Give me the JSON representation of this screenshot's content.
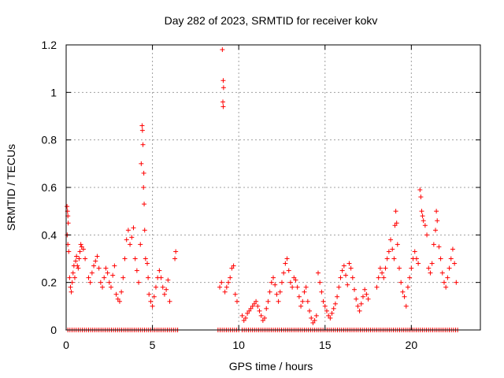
{
  "chart_data": {
    "type": "scatter",
    "title": "Day 282 of 2023, SRMTID for receiver kokv",
    "xlabel": "GPS time / hours",
    "ylabel": "SRMTID / TECUs",
    "xlim": [
      0,
      24
    ],
    "ylim": [
      0,
      1.2
    ],
    "x_ticks": [
      "0",
      "5",
      "10",
      "15",
      "20"
    ],
    "x_tick_values": [
      0,
      5,
      10,
      15,
      20
    ],
    "y_ticks": [
      "0",
      "0.2",
      "0.4",
      "0.6",
      "0.8",
      "1",
      "1.2"
    ],
    "y_tick_values": [
      0,
      0.2,
      0.4,
      0.6,
      0.8,
      1.0,
      1.2
    ],
    "grid": true,
    "marker": "plus",
    "color": "#ff0000",
    "series": [
      {
        "name": "SRMTID",
        "points": [
          [
            0.05,
            0.52
          ],
          [
            0.08,
            0.5
          ],
          [
            0.1,
            0.48
          ],
          [
            0.12,
            0.45
          ],
          [
            0.06,
            0.4
          ],
          [
            0.1,
            0.36
          ],
          [
            0.15,
            0.33
          ],
          [
            0.2,
            0.22
          ],
          [
            0.25,
            0.18
          ],
          [
            0.3,
            0.16
          ],
          [
            0.35,
            0.2
          ],
          [
            0.4,
            0.24
          ],
          [
            0.45,
            0.27
          ],
          [
            0.5,
            0.22
          ],
          [
            0.55,
            0.29
          ],
          [
            0.6,
            0.31
          ],
          [
            0.65,
            0.27
          ],
          [
            0.7,
            0.26
          ],
          [
            0.75,
            0.3
          ],
          [
            0.8,
            0.33
          ],
          [
            0.85,
            0.36
          ],
          [
            0.9,
            0.35
          ],
          [
            1.0,
            0.34
          ],
          [
            1.1,
            0.3
          ],
          [
            1.3,
            0.22
          ],
          [
            1.4,
            0.2
          ],
          [
            1.5,
            0.24
          ],
          [
            1.6,
            0.27
          ],
          [
            1.7,
            0.29
          ],
          [
            1.8,
            0.31
          ],
          [
            1.9,
            0.26
          ],
          [
            2.0,
            0.2
          ],
          [
            2.1,
            0.18
          ],
          [
            2.2,
            0.22
          ],
          [
            2.3,
            0.26
          ],
          [
            2.4,
            0.24
          ],
          [
            2.5,
            0.2
          ],
          [
            2.6,
            0.18
          ],
          [
            2.7,
            0.23
          ],
          [
            2.8,
            0.27
          ],
          [
            2.9,
            0.15
          ],
          [
            3.0,
            0.13
          ],
          [
            3.1,
            0.12
          ],
          [
            3.2,
            0.16
          ],
          [
            3.3,
            0.22
          ],
          [
            3.4,
            0.3
          ],
          [
            3.5,
            0.38
          ],
          [
            3.6,
            0.42
          ],
          [
            3.7,
            0.36
          ],
          [
            3.8,
            0.39
          ],
          [
            3.9,
            0.43
          ],
          [
            4.0,
            0.3
          ],
          [
            4.1,
            0.25
          ],
          [
            4.2,
            0.2
          ],
          [
            4.3,
            0.36
          ],
          [
            4.35,
            0.7
          ],
          [
            4.4,
            0.86
          ],
          [
            4.42,
            0.84
          ],
          [
            4.45,
            0.78
          ],
          [
            4.5,
            0.66
          ],
          [
            4.48,
            0.6
          ],
          [
            4.52,
            0.53
          ],
          [
            4.55,
            0.42
          ],
          [
            4.6,
            0.3
          ],
          [
            4.7,
            0.28
          ],
          [
            4.75,
            0.22
          ],
          [
            4.8,
            0.15
          ],
          [
            4.9,
            0.12
          ],
          [
            5.0,
            0.1
          ],
          [
            5.1,
            0.14
          ],
          [
            5.2,
            0.18
          ],
          [
            5.3,
            0.22
          ],
          [
            5.4,
            0.25
          ],
          [
            5.5,
            0.22
          ],
          [
            5.6,
            0.18
          ],
          [
            5.7,
            0.15
          ],
          [
            5.8,
            0.17
          ],
          [
            5.9,
            0.21
          ],
          [
            6.0,
            0.12
          ],
          [
            6.3,
            0.3
          ],
          [
            6.35,
            0.33
          ],
          [
            9.05,
            1.18
          ],
          [
            9.1,
            1.05
          ],
          [
            9.12,
            1.02
          ],
          [
            9.08,
            0.96
          ],
          [
            9.1,
            0.94
          ],
          [
            8.9,
            0.18
          ],
          [
            9.0,
            0.2
          ],
          [
            9.2,
            0.16
          ],
          [
            9.3,
            0.18
          ],
          [
            9.4,
            0.2
          ],
          [
            9.5,
            0.22
          ],
          [
            9.6,
            0.26
          ],
          [
            9.7,
            0.27
          ],
          [
            9.8,
            0.15
          ],
          [
            9.9,
            0.12
          ],
          [
            10.2,
            0.06
          ],
          [
            10.3,
            0.04
          ],
          [
            10.4,
            0.05
          ],
          [
            10.5,
            0.07
          ],
          [
            10.6,
            0.08
          ],
          [
            10.7,
            0.09
          ],
          [
            10.8,
            0.1
          ],
          [
            10.9,
            0.11
          ],
          [
            11.0,
            0.12
          ],
          [
            11.1,
            0.1
          ],
          [
            11.2,
            0.08
          ],
          [
            11.3,
            0.06
          ],
          [
            11.4,
            0.04
          ],
          [
            11.5,
            0.05
          ],
          [
            11.6,
            0.09
          ],
          [
            11.7,
            0.12
          ],
          [
            11.8,
            0.16
          ],
          [
            11.9,
            0.2
          ],
          [
            12.0,
            0.22
          ],
          [
            12.1,
            0.19
          ],
          [
            12.2,
            0.15
          ],
          [
            12.3,
            0.12
          ],
          [
            12.4,
            0.16
          ],
          [
            12.5,
            0.2
          ],
          [
            12.6,
            0.24
          ],
          [
            12.7,
            0.28
          ],
          [
            12.8,
            0.3
          ],
          [
            12.9,
            0.25
          ],
          [
            13.0,
            0.2
          ],
          [
            13.1,
            0.18
          ],
          [
            13.2,
            0.22
          ],
          [
            13.3,
            0.21
          ],
          [
            13.4,
            0.18
          ],
          [
            13.5,
            0.14
          ],
          [
            13.6,
            0.1
          ],
          [
            13.7,
            0.12
          ],
          [
            13.8,
            0.16
          ],
          [
            13.9,
            0.18
          ],
          [
            14.0,
            0.12
          ],
          [
            14.1,
            0.08
          ],
          [
            14.2,
            0.05
          ],
          [
            14.3,
            0.03
          ],
          [
            14.4,
            0.04
          ],
          [
            14.5,
            0.06
          ],
          [
            14.6,
            0.24
          ],
          [
            14.7,
            0.2
          ],
          [
            14.8,
            0.16
          ],
          [
            14.9,
            0.12
          ],
          [
            15.0,
            0.1
          ],
          [
            15.1,
            0.08
          ],
          [
            15.2,
            0.06
          ],
          [
            15.3,
            0.05
          ],
          [
            15.4,
            0.07
          ],
          [
            15.5,
            0.09
          ],
          [
            15.6,
            0.11
          ],
          [
            15.7,
            0.14
          ],
          [
            15.8,
            0.18
          ],
          [
            15.9,
            0.22
          ],
          [
            16.0,
            0.25
          ],
          [
            16.1,
            0.27
          ],
          [
            16.2,
            0.23
          ],
          [
            16.3,
            0.19
          ],
          [
            16.4,
            0.28
          ],
          [
            16.5,
            0.26
          ],
          [
            16.6,
            0.22
          ],
          [
            16.7,
            0.17
          ],
          [
            16.8,
            0.13
          ],
          [
            16.9,
            0.1
          ],
          [
            17.0,
            0.08
          ],
          [
            17.1,
            0.11
          ],
          [
            17.2,
            0.14
          ],
          [
            17.3,
            0.17
          ],
          [
            17.4,
            0.15
          ],
          [
            17.5,
            0.13
          ],
          [
            18.0,
            0.18
          ],
          [
            18.1,
            0.22
          ],
          [
            18.2,
            0.26
          ],
          [
            18.3,
            0.24
          ],
          [
            18.4,
            0.22
          ],
          [
            18.5,
            0.26
          ],
          [
            18.6,
            0.3
          ],
          [
            18.7,
            0.33
          ],
          [
            18.8,
            0.38
          ],
          [
            18.9,
            0.34
          ],
          [
            19.0,
            0.3
          ],
          [
            19.05,
            0.44
          ],
          [
            19.1,
            0.5
          ],
          [
            19.15,
            0.45
          ],
          [
            19.2,
            0.36
          ],
          [
            19.3,
            0.26
          ],
          [
            19.4,
            0.2
          ],
          [
            19.5,
            0.16
          ],
          [
            19.6,
            0.14
          ],
          [
            19.7,
            0.1
          ],
          [
            19.8,
            0.18
          ],
          [
            19.9,
            0.22
          ],
          [
            20.0,
            0.26
          ],
          [
            20.1,
            0.3
          ],
          [
            20.2,
            0.33
          ],
          [
            20.3,
            0.3
          ],
          [
            20.4,
            0.28
          ],
          [
            20.5,
            0.59
          ],
          [
            20.55,
            0.56
          ],
          [
            20.6,
            0.5
          ],
          [
            20.65,
            0.48
          ],
          [
            20.7,
            0.46
          ],
          [
            20.8,
            0.44
          ],
          [
            20.9,
            0.4
          ],
          [
            21.0,
            0.26
          ],
          [
            21.1,
            0.24
          ],
          [
            21.2,
            0.28
          ],
          [
            21.3,
            0.36
          ],
          [
            21.4,
            0.42
          ],
          [
            21.45,
            0.5
          ],
          [
            21.5,
            0.46
          ],
          [
            21.6,
            0.35
          ],
          [
            21.7,
            0.3
          ],
          [
            21.8,
            0.24
          ],
          [
            21.9,
            0.2
          ],
          [
            22.0,
            0.18
          ],
          [
            22.1,
            0.22
          ],
          [
            22.2,
            0.26
          ],
          [
            22.3,
            0.3
          ],
          [
            22.4,
            0.34
          ],
          [
            22.5,
            0.28
          ],
          [
            22.6,
            0.2
          ]
        ],
        "zero_ranges": [
          [
            0.1,
            6.5
          ],
          [
            8.8,
            10.1
          ],
          [
            10.2,
            22.7
          ]
        ]
      }
    ]
  }
}
